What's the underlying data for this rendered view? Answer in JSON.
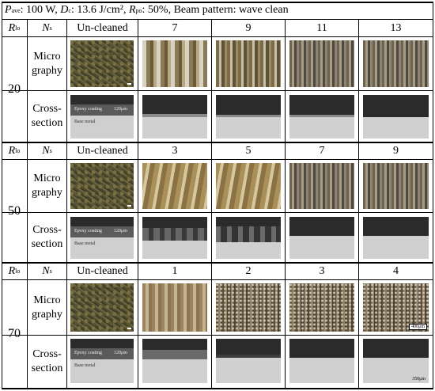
{
  "header": {
    "p_sym": "P",
    "p_sub": "ave",
    "p_val": ": 100 W,",
    "d_sym": "D",
    "d_sub": "c",
    "d_val": ": 13.6 J/cm²,",
    "r_sym": "R",
    "r_sub": "po",
    "r_val": ": 50%, Beam pattern: wave clean"
  },
  "row_labels": {
    "r_sym": "R",
    "r_sub": "lo",
    "n_sym": "N",
    "n_sub": "s",
    "uncleaned": "Un-cleaned",
    "micro_1": "Micro",
    "micro_2": "graphy",
    "cross_1": "Cross-",
    "cross_2": "section"
  },
  "groups": [
    {
      "rlo": "20",
      "ns": [
        "7",
        "9",
        "11",
        "13"
      ]
    },
    {
      "rlo": "50",
      "ns": [
        "3",
        "5",
        "7",
        "9"
      ]
    },
    {
      "rlo": "70",
      "ns": [
        "1",
        "2",
        "3",
        "4"
      ]
    }
  ],
  "image_text": {
    "epoxy": "Epoxy coating",
    "base": "Base metal",
    "thickness": "120μm",
    "scale_micro": "400μm",
    "scale_cross": "350μm"
  }
}
